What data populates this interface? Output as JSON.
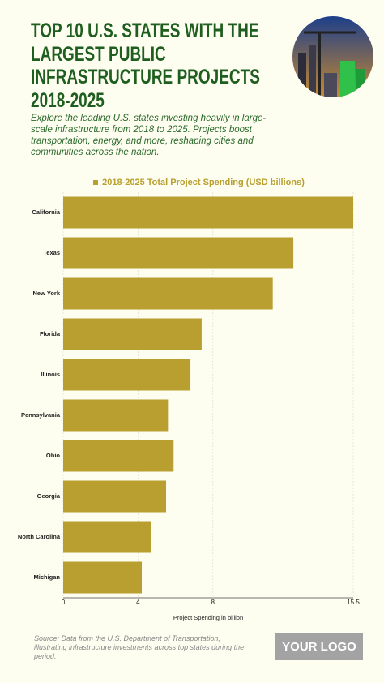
{
  "header": {
    "title": "TOP 10 U.S. STATES WITH THE LARGEST PUBLIC INFRASTRUCTURE PROJECTS 2018-2025",
    "subtitle": "Explore the leading U.S. states investing heavily in large-scale infrastructure from 2018 to 2025. Projects boost transportation, energy, and more, reshaping cities and communities across the nation."
  },
  "chart_data": {
    "type": "bar",
    "orientation": "horizontal",
    "categories": [
      "California",
      "Texas",
      "New York",
      "Florida",
      "Illinois",
      "Pennsylvania",
      "Ohio",
      "Georgia",
      "North Carolina",
      "Michigan"
    ],
    "series": [
      {
        "name": "2018-2025 Total Project Spending (USD billions)",
        "color": "#b89f2f",
        "values": [
          15.5,
          12.3,
          11.2,
          7.4,
          6.8,
          5.6,
          5.9,
          5.5,
          4.7,
          4.2
        ]
      }
    ],
    "x_label": "Project Spending in billion",
    "xlim": [
      0,
      15.5
    ],
    "xticks": [
      0,
      4,
      8,
      15.5
    ],
    "grid": true,
    "legend": "top"
  },
  "footer": {
    "source": "Source: Data from the U.S. Department of Transportation, illustrating infrastructure investments across top states during the period.",
    "logo": "YOUR LOGO"
  }
}
